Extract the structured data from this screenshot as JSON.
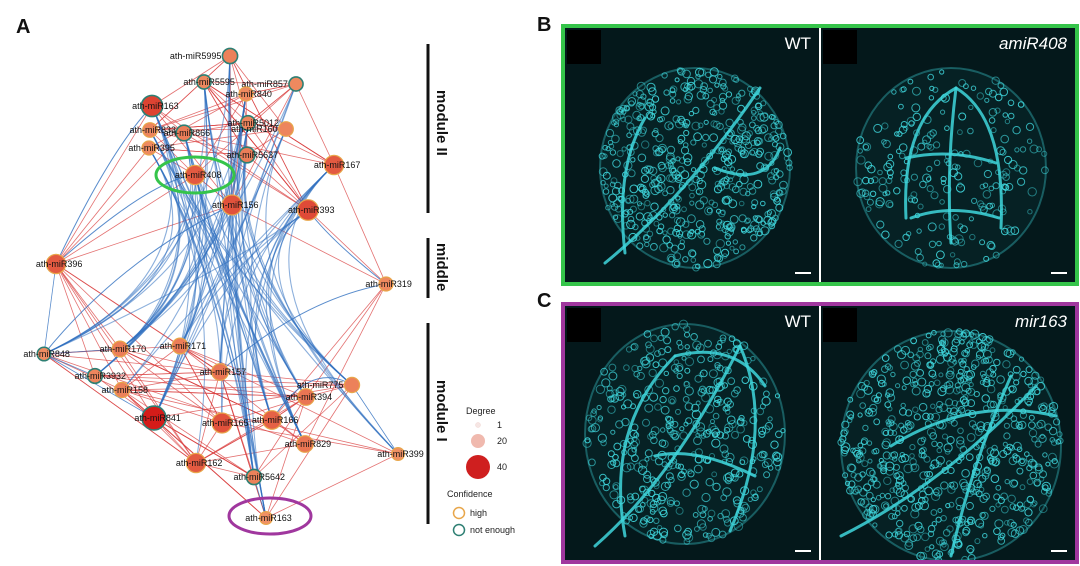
{
  "panels": {
    "a": "A",
    "b": "B",
    "c": "C"
  },
  "colors": {
    "red_edge": "#d94040",
    "blue_edge": "#2f6fbf",
    "high": "#e8a64a",
    "not_enough": "#2e7f73",
    "green_highlight": "#35c44a",
    "purple_highlight": "#a0379e",
    "tissue_cyan": "#3fd6dc",
    "tissue_bg": "#04181b"
  },
  "modules": {
    "module2": "module II",
    "middle": "middle",
    "module1": "module I"
  },
  "legend": {
    "degree_title": "Degree",
    "degrees": [
      "1",
      "20",
      "40"
    ],
    "confidence_title": "Confidence",
    "high": "high",
    "not_enough": "not enough"
  },
  "nodes": [
    {
      "id": "ath-miR5995",
      "degree": 8,
      "conf": "not_enough"
    },
    {
      "id": "ath-miR5595",
      "degree": 6,
      "conf": "not_enough"
    },
    {
      "id": "ath-miR857",
      "degree": 6,
      "conf": "not_enough"
    },
    {
      "id": "ath-miR840",
      "degree": 6,
      "conf": "high"
    },
    {
      "id": "ath-miR163",
      "degree": 24,
      "conf": "not_enough"
    },
    {
      "id": "ath-miR5012",
      "degree": 7,
      "conf": "not_enough"
    },
    {
      "id": "ath-miR833",
      "degree": 7,
      "conf": "high"
    },
    {
      "id": "ath-miR866",
      "degree": 9,
      "conf": "not_enough"
    },
    {
      "id": "ath-miR160",
      "degree": 7,
      "conf": "high"
    },
    {
      "id": "ath-miR395",
      "degree": 6,
      "conf": "high"
    },
    {
      "id": "ath-miR5637",
      "degree": 9,
      "conf": "not_enough"
    },
    {
      "id": "ath-miR167",
      "degree": 18,
      "conf": "high"
    },
    {
      "id": "ath-miR408",
      "degree": 18,
      "conf": "high"
    },
    {
      "id": "ath-miR156",
      "degree": 20,
      "conf": "high"
    },
    {
      "id": "ath-miR393",
      "degree": 22,
      "conf": "high"
    },
    {
      "id": "ath-miR396",
      "degree": 18,
      "conf": "high"
    },
    {
      "id": "ath-miR319",
      "degree": 6,
      "conf": "high"
    },
    {
      "id": "ath-miR848",
      "degree": 5,
      "conf": "not_enough"
    },
    {
      "id": "ath-miR170",
      "degree": 9,
      "conf": "high"
    },
    {
      "id": "ath-miR171",
      "degree": 9,
      "conf": "high"
    },
    {
      "id": "ath-miR3932",
      "degree": 7,
      "conf": "not_enough"
    },
    {
      "id": "ath-miR157",
      "degree": 11,
      "conf": "high"
    },
    {
      "id": "ath-miR158",
      "degree": 8,
      "conf": "high"
    },
    {
      "id": "ath-miR775",
      "degree": 8,
      "conf": "high"
    },
    {
      "id": "ath-miR394",
      "degree": 11,
      "conf": "high"
    },
    {
      "id": "ath-miR841",
      "degree": 34,
      "conf": "not_enough"
    },
    {
      "id": "ath-miR165",
      "degree": 20,
      "conf": "high"
    },
    {
      "id": "ath-miR166",
      "degree": 16,
      "conf": "high"
    },
    {
      "id": "ath-miR829",
      "degree": 11,
      "conf": "high"
    },
    {
      "id": "ath-miR399",
      "degree": 4,
      "conf": "high"
    },
    {
      "id": "ath-miR162",
      "degree": 18,
      "conf": "high"
    },
    {
      "id": "ath-miR5642",
      "degree": 8,
      "conf": "not_enough"
    },
    {
      "id": "ath-miR163b",
      "label": "ath-miR163",
      "degree": 4,
      "conf": "high"
    }
  ],
  "images": {
    "b_left": "WT",
    "b_right": "amiR408",
    "c_left": "WT",
    "c_right": "mir163"
  }
}
